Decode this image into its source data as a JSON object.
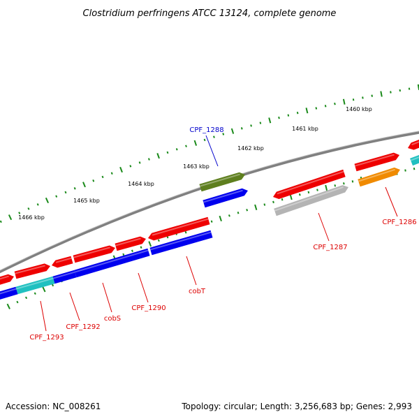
{
  "title": "Clostridium perfringens ATCC 13124, complete genome",
  "footer": {
    "accession": "Accession: NC_008261",
    "summary": "Topology: circular; Length: 3,256,683 bp; Genes: 2,993"
  },
  "scale": {
    "labels": [
      "1460 kbp",
      "1461 kbp",
      "1462 kbp",
      "1463 kbp",
      "1464 kbp",
      "1465 kbp",
      "1466 kbp"
    ]
  },
  "colors": {
    "backbone": "#808080",
    "ticks": "#1a8a1a",
    "red": "#ee0000",
    "blue": "#0000ee",
    "cyan": "#20c0c0",
    "olive": "#5e7f1e",
    "orange": "#f08a00",
    "gray": "#b4b4b4",
    "label_red": "#dd0000",
    "label_blue": "#0000cc"
  },
  "gene_labels": [
    {
      "text": "CPF_1288",
      "color": "blue"
    },
    {
      "text": "CPF_1286",
      "color": "red"
    },
    {
      "text": "CPF_1287",
      "color": "red"
    },
    {
      "text": "cobT",
      "color": "red"
    },
    {
      "text": "CPF_1290",
      "color": "red"
    },
    {
      "text": "cobS",
      "color": "red"
    },
    {
      "text": "CPF_1292",
      "color": "red"
    },
    {
      "text": "CPF_1293",
      "color": "red"
    }
  ]
}
